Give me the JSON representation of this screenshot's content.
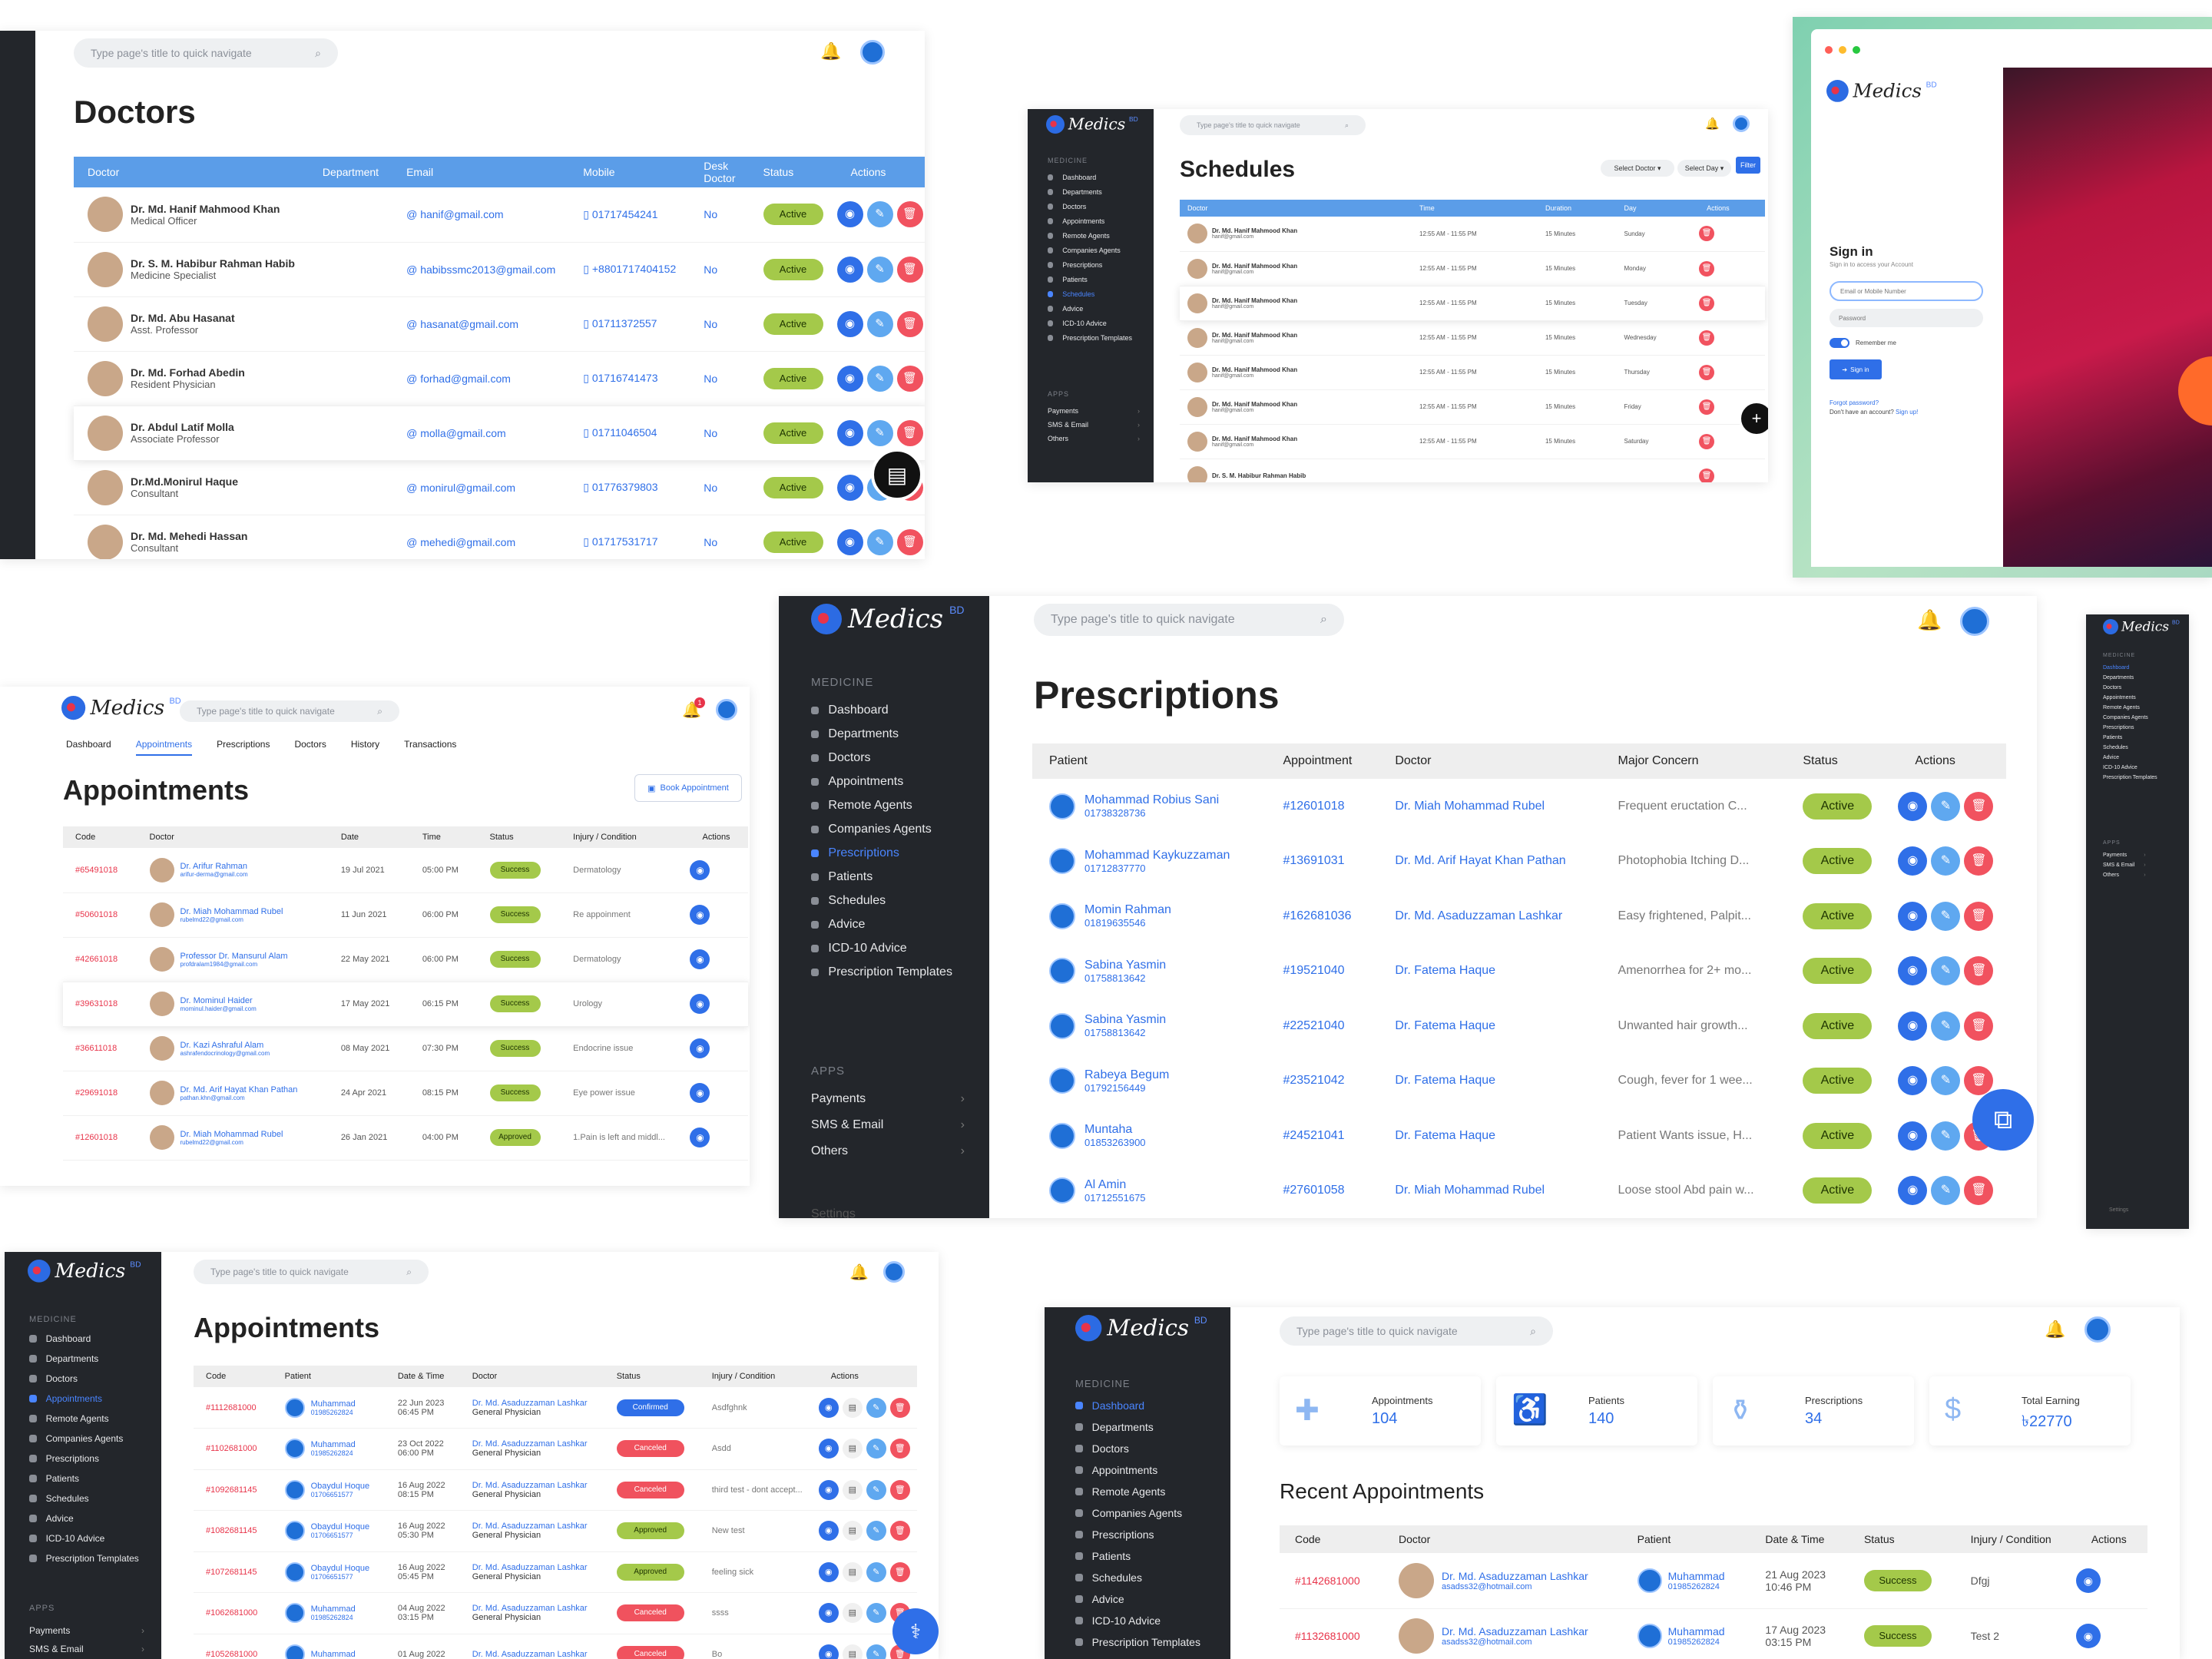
{
  "app": {
    "logo": "Medics",
    "logo_sup": "BD",
    "search_placeholder": "Type page's title  to quick navigate"
  },
  "colors": {
    "accent": "#2f6fe8",
    "sidebar": "#23262b",
    "active": "#a4c94a",
    "danger": "#f1525f"
  },
  "sidebar": {
    "medicine_label": "MEDICINE",
    "apps_label": "APPS",
    "items": [
      "Dashboard",
      "Departments",
      "Doctors",
      "Appointments",
      "Remote Agents",
      "Companies Agents",
      "Prescriptions",
      "Patients",
      "Schedules",
      "Advice",
      "ICD-10 Advice",
      "Prescription Templates"
    ],
    "apps": [
      "Payments",
      "SMS & Email",
      "Others"
    ],
    "settings": "Settings"
  },
  "doctors": {
    "title": "Doctors",
    "columns": [
      "Doctor",
      "Department",
      "Email",
      "Mobile",
      "Desk Doctor",
      "Status",
      "Actions"
    ],
    "rows": [
      {
        "name": "Dr. Md. Hanif Mahmood Khan",
        "role": "Medical Officer",
        "email": "hanif@gmail.com",
        "mobile": "01717454241",
        "desk": "No",
        "status": "Active"
      },
      {
        "name": "Dr. S. M. Habibur Rahman Habib",
        "role": "Medicine Specialist",
        "email": "habibssmc2013@gmail.com",
        "mobile": "+8801717404152",
        "desk": "No",
        "status": "Active"
      },
      {
        "name": "Dr. Md. Abu Hasanat",
        "role": "Asst. Professor",
        "email": "hasanat@gmail.com",
        "mobile": "01711372557",
        "desk": "No",
        "status": "Active"
      },
      {
        "name": "Dr. Md. Forhad Abedin",
        "role": "Resident Physician",
        "email": "forhad@gmail.com",
        "mobile": "01716741473",
        "desk": "No",
        "status": "Active"
      },
      {
        "name": "Dr. Abdul Latif Molla",
        "role": "Associate Professor",
        "email": "molla@gmail.com",
        "mobile": "01711046504",
        "desk": "No",
        "status": "Active"
      },
      {
        "name": "Dr.Md.Monirul Haque",
        "role": "Consultant",
        "email": "monirul@gmail.com",
        "mobile": "01776379803",
        "desk": "No",
        "status": "Active"
      },
      {
        "name": "Dr. Md. Mehedi Hassan",
        "role": "Consultant",
        "email": "mehedi@gmail.com",
        "mobile": "01717531717",
        "desk": "No",
        "status": "Active"
      }
    ]
  },
  "schedules": {
    "title": "Schedules",
    "select_doctor": "Select Doctor",
    "select_day": "Select Day",
    "filter": "Filter",
    "columns": [
      "Doctor",
      "Time",
      "Duration",
      "Day",
      "Actions"
    ],
    "rows": [
      {
        "name": "Dr. Md. Hanif Mahmood Khan",
        "email": "hanif@gmail.com",
        "time": "12:55 AM - 11:55 PM",
        "duration": "15 Minutes",
        "day": "Sunday"
      },
      {
        "name": "Dr. Md. Hanif Mahmood Khan",
        "email": "hanif@gmail.com",
        "time": "12:55 AM - 11:55 PM",
        "duration": "15 Minutes",
        "day": "Monday"
      },
      {
        "name": "Dr. Md. Hanif Mahmood Khan",
        "email": "hanif@gmail.com",
        "time": "12:55 AM - 11:55 PM",
        "duration": "15 Minutes",
        "day": "Tuesday"
      },
      {
        "name": "Dr. Md. Hanif Mahmood Khan",
        "email": "hanif@gmail.com",
        "time": "12:55 AM - 11:55 PM",
        "duration": "15 Minutes",
        "day": "Wednesday"
      },
      {
        "name": "Dr. Md. Hanif Mahmood Khan",
        "email": "hanif@gmail.com",
        "time": "12:55 AM - 11:55 PM",
        "duration": "15 Minutes",
        "day": "Thursday"
      },
      {
        "name": "Dr. Md. Hanif Mahmood Khan",
        "email": "hanif@gmail.com",
        "time": "12:55 AM - 11:55 PM",
        "duration": "15 Minutes",
        "day": "Friday"
      },
      {
        "name": "Dr. Md. Hanif Mahmood Khan",
        "email": "hanif@gmail.com",
        "time": "12:55 AM - 11:55 PM",
        "duration": "15 Minutes",
        "day": "Saturday"
      },
      {
        "name": "Dr. S. M. Habibur Rahman Habib",
        "email": "",
        "time": "",
        "duration": "",
        "day": ""
      }
    ]
  },
  "signin": {
    "title": "Sign in",
    "subtitle": "Sign in to access your Account",
    "email_placeholder": "Email or Mobile Number",
    "password_placeholder": "Password",
    "remember": "Remember me",
    "button": "Sign in",
    "forgot": "Forgot password?",
    "no_account": "Don't have an account?",
    "signup": "Sign up!"
  },
  "appointments_top": {
    "title": "Appointments",
    "book": "Book Appointment",
    "notif": "1",
    "tabs": [
      "Dashboard",
      "Appointments",
      "Prescriptions",
      "Doctors",
      "History",
      "Transactions"
    ],
    "columns": [
      "Code",
      "Doctor",
      "Date",
      "Time",
      "Status",
      "Injury / Condition",
      "Actions"
    ],
    "rows": [
      {
        "code": "#65491018",
        "doctor": "Dr. Arifur Rahman",
        "email": "arifur-derma@gmail.com",
        "date": "19 Jul 2021",
        "time": "05:00 PM",
        "status": "Success",
        "cond": "Dermatology"
      },
      {
        "code": "#50601018",
        "doctor": "Dr. Miah Mohammad Rubel",
        "email": "rubelmd22@gmail.com",
        "date": "11 Jun 2021",
        "time": "06:00 PM",
        "status": "Success",
        "cond": "Re appoinment"
      },
      {
        "code": "#42661018",
        "doctor": "Professor Dr. Mansurul Alam",
        "email": "profdralam1984@gmail.com",
        "date": "22 May 2021",
        "time": "06:00 PM",
        "status": "Success",
        "cond": "Dermatology"
      },
      {
        "code": "#39631018",
        "doctor": "Dr. Mominul Haider",
        "email": "mominul.haider@gmail.com",
        "date": "17 May 2021",
        "time": "06:15 PM",
        "status": "Success",
        "cond": "Urology"
      },
      {
        "code": "#36611018",
        "doctor": "Dr. Kazi Ashraful Alam",
        "email": "ashrafendocrinology@gmail.com",
        "date": "08 May 2021",
        "time": "07:30 PM",
        "status": "Success",
        "cond": "Endocrine issue"
      },
      {
        "code": "#29691018",
        "doctor": "Dr. Md. Arif Hayat Khan Pathan",
        "email": "pathan.khn@gmail.com",
        "date": "24 Apr 2021",
        "time": "08:15 PM",
        "status": "Success",
        "cond": "Eye power issue"
      },
      {
        "code": "#12601018",
        "doctor": "Dr. Miah Mohammad Rubel",
        "email": "rubelmd22@gmail.com",
        "date": "26 Jan 2021",
        "time": "04:00 PM",
        "status": "Approved",
        "cond": "1.Pain is left and middl..."
      }
    ]
  },
  "prescriptions": {
    "title": "Prescriptions",
    "columns": [
      "Patient",
      "Appointment",
      "Doctor",
      "Major Concern",
      "Status",
      "Actions"
    ],
    "rows": [
      {
        "patient": "Mohammad Robius Sani",
        "phone": "01738328736",
        "appt": "#12601018",
        "doctor": "Dr. Miah Mohammad Rubel",
        "concern": "Frequent eructation C...",
        "status": "Active"
      },
      {
        "patient": "Mohammad Kaykuzzaman",
        "phone": "01712837770",
        "appt": "#13691031",
        "doctor": "Dr. Md. Arif Hayat Khan Pathan",
        "concern": "Photophobia Itching D...",
        "status": "Active"
      },
      {
        "patient": "Momin Rahman",
        "phone": "01819635546",
        "appt": "#162681036",
        "doctor": "Dr. Md. Asaduzzaman Lashkar",
        "concern": "Easy frightened, Palpit...",
        "status": "Active"
      },
      {
        "patient": "Sabina Yasmin",
        "phone": "01758813642",
        "appt": "#19521040",
        "doctor": "Dr. Fatema Haque",
        "concern": "Amenorrhea for 2+ mo...",
        "status": "Active"
      },
      {
        "patient": "Sabina Yasmin",
        "phone": "01758813642",
        "appt": "#22521040",
        "doctor": "Dr. Fatema Haque",
        "concern": "Unwanted hair growth...",
        "status": "Active"
      },
      {
        "patient": "Rabeya Begum",
        "phone": "01792156449",
        "appt": "#23521042",
        "doctor": "Dr. Fatema Haque",
        "concern": "Cough, fever for 1 wee...",
        "status": "Active"
      },
      {
        "patient": "Muntaha",
        "phone": "01853263900",
        "appt": "#24521041",
        "doctor": "Dr. Fatema Haque",
        "concern": "Patient Wants issue, H...",
        "status": "Active"
      },
      {
        "patient": "Al Amin",
        "phone": "01712551675",
        "appt": "#27601058",
        "doctor": "Dr. Miah Mohammad Rubel",
        "concern": "Loose stool Abd pain w...",
        "status": "Active"
      }
    ]
  },
  "appointments_bottom": {
    "title": "Appointments",
    "columns": [
      "Code",
      "Patient",
      "Date & Time",
      "Doctor",
      "Status",
      "Injury / Condition",
      "Actions"
    ],
    "rows": [
      {
        "code": "#1112681000",
        "patient": "Muhammad",
        "phone": "01985262824",
        "date": "22 Jun 2023",
        "time": "06:45 PM",
        "doctor": "Dr. Md. Asaduzzaman Lashkar",
        "spec": "General Physician",
        "status": "Confirmed",
        "cond": "Asdfghnk"
      },
      {
        "code": "#1102681000",
        "patient": "Muhammad",
        "phone": "01985262824",
        "date": "23 Oct 2022",
        "time": "06:00 PM",
        "doctor": "Dr. Md. Asaduzzaman Lashkar",
        "spec": "General Physician",
        "status": "Canceled",
        "cond": "Asdd"
      },
      {
        "code": "#1092681145",
        "patient": "Obaydul Hoque",
        "phone": "01706651577",
        "date": "16 Aug 2022",
        "time": "08:15 PM",
        "doctor": "Dr. Md. Asaduzzaman Lashkar",
        "spec": "General Physician",
        "status": "Canceled",
        "cond": "third test - dont accept..."
      },
      {
        "code": "#1082681145",
        "patient": "Obaydul Hoque",
        "phone": "01706651577",
        "date": "16 Aug 2022",
        "time": "05:30 PM",
        "doctor": "Dr. Md. Asaduzzaman Lashkar",
        "spec": "General Physician",
        "status": "Approved",
        "cond": "New test"
      },
      {
        "code": "#1072681145",
        "patient": "Obaydul Hoque",
        "phone": "01706651577",
        "date": "16 Aug 2022",
        "time": "05:45 PM",
        "doctor": "Dr. Md. Asaduzzaman Lashkar",
        "spec": "General Physician",
        "status": "Approved",
        "cond": "feeling sick"
      },
      {
        "code": "#1062681000",
        "patient": "Muhammad",
        "phone": "01985262824",
        "date": "04 Aug 2022",
        "time": "03:15 PM",
        "doctor": "Dr. Md. Asaduzzaman Lashkar",
        "spec": "General Physician",
        "status": "Canceled",
        "cond": "ssss"
      },
      {
        "code": "#1052681000",
        "patient": "Muhammad",
        "phone": "",
        "date": "01 Aug 2022",
        "time": "",
        "doctor": "Dr. Md. Asaduzzaman Lashkar",
        "spec": "",
        "status": "Canceled",
        "cond": "Bo"
      }
    ]
  },
  "dashboard": {
    "stats": [
      {
        "label": "Appointments",
        "value": "104"
      },
      {
        "label": "Patients",
        "value": "140"
      },
      {
        "label": "Prescriptions",
        "value": "34"
      },
      {
        "label": "Total Earning",
        "value": "৳22770"
      }
    ],
    "recent_title": "Recent Appointments",
    "columns": [
      "Code",
      "Doctor",
      "Patient",
      "Date & Time",
      "Status",
      "Injury / Condition",
      "Actions"
    ],
    "rows": [
      {
        "code": "#1142681000",
        "doctor": "Dr. Md. Asaduzzaman Lashkar",
        "demail": "asadss32@hotmail.com",
        "patient": "Muhammad",
        "phone": "01985262824",
        "date": "21 Aug 2023",
        "time": "10:46 PM",
        "status": "Success",
        "cond": "Dfgj"
      },
      {
        "code": "#1132681000",
        "doctor": "Dr. Md. Asaduzzaman Lashkar",
        "demail": "asadss32@hotmail.com",
        "patient": "Muhammad",
        "phone": "01985262824",
        "date": "17 Aug 2023",
        "time": "03:15 PM",
        "status": "Success",
        "cond": "Test 2"
      }
    ]
  }
}
